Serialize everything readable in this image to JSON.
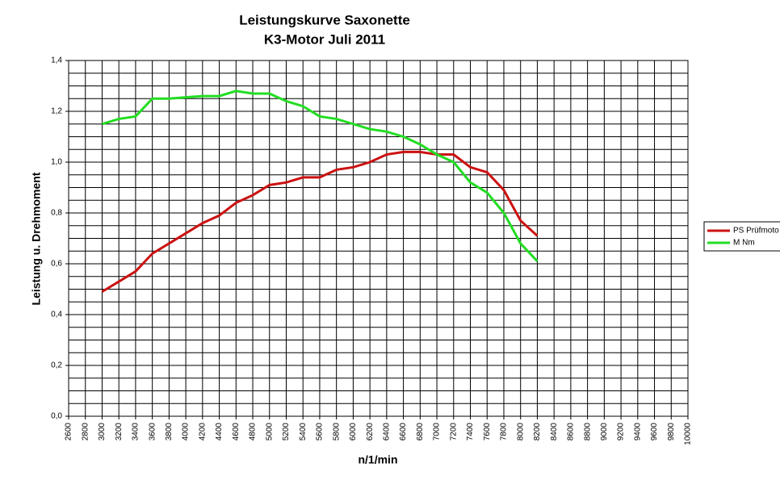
{
  "chart_data": {
    "type": "line",
    "title": "Leistungskurve Saxonette",
    "subtitle": "K3-Motor Juli 2011",
    "x_label": "n/1/min",
    "y_label": "Leistung u. Drehmoment",
    "x": [
      3000,
      3200,
      3400,
      3600,
      3800,
      4000,
      4200,
      4400,
      4600,
      4800,
      5000,
      5200,
      5400,
      5600,
      5800,
      6000,
      6200,
      6400,
      6600,
      6800,
      7000,
      7200,
      7400,
      7600,
      7800,
      8000,
      8200
    ],
    "series": [
      {
        "name": "PS Prüfmoto",
        "color": "#cc1111",
        "values": [
          0.49,
          0.53,
          0.57,
          0.64,
          0.68,
          0.72,
          0.76,
          0.79,
          0.84,
          0.87,
          0.91,
          0.92,
          0.94,
          0.94,
          0.97,
          0.98,
          1.0,
          1.03,
          1.04,
          1.04,
          1.03,
          1.03,
          0.98,
          0.96,
          0.89,
          0.77,
          0.71
        ]
      },
      {
        "name": "M Nm",
        "color": "#22dd22",
        "values": [
          1.15,
          1.17,
          1.18,
          1.25,
          1.25,
          1.255,
          1.26,
          1.26,
          1.28,
          1.27,
          1.27,
          1.24,
          1.22,
          1.18,
          1.17,
          1.15,
          1.13,
          1.12,
          1.1,
          1.07,
          1.03,
          1.0,
          0.92,
          0.88,
          0.8,
          0.68,
          0.61
        ]
      }
    ],
    "xlim": [
      2600,
      10000
    ],
    "xticks": [
      2600,
      2800,
      3000,
      3200,
      3400,
      3600,
      3800,
      4000,
      4200,
      4400,
      4600,
      4800,
      5000,
      5200,
      5400,
      5600,
      5800,
      6000,
      6200,
      6400,
      6600,
      6800,
      7000,
      7200,
      7400,
      7600,
      7800,
      8000,
      8200,
      8400,
      8600,
      8800,
      9000,
      9200,
      9400,
      9600,
      9800,
      10000
    ],
    "ylim": [
      0,
      1.4
    ],
    "yticks": [
      {
        "value": 0,
        "label": "0,0"
      },
      {
        "value": 0.2,
        "label": "0,2"
      },
      {
        "value": 0.4,
        "label": "0,4"
      },
      {
        "value": 0.6,
        "label": "0,6"
      },
      {
        "value": 0.8,
        "label": "0,8"
      },
      {
        "value": 1.0,
        "label": "1,0"
      },
      {
        "value": 1.2,
        "label": "1,2"
      },
      {
        "value": 1.4,
        "label": "1,4"
      }
    ],
    "y_minor_ticks": [
      0.05,
      0.1,
      0.15,
      0.25,
      0.3,
      0.35,
      0.45,
      0.5,
      0.55,
      0.65,
      0.7,
      0.75,
      0.85,
      0.9,
      0.95,
      1.05,
      1.1,
      1.15,
      1.25,
      1.3,
      1.35
    ],
    "grid": true,
    "legend": "right"
  }
}
